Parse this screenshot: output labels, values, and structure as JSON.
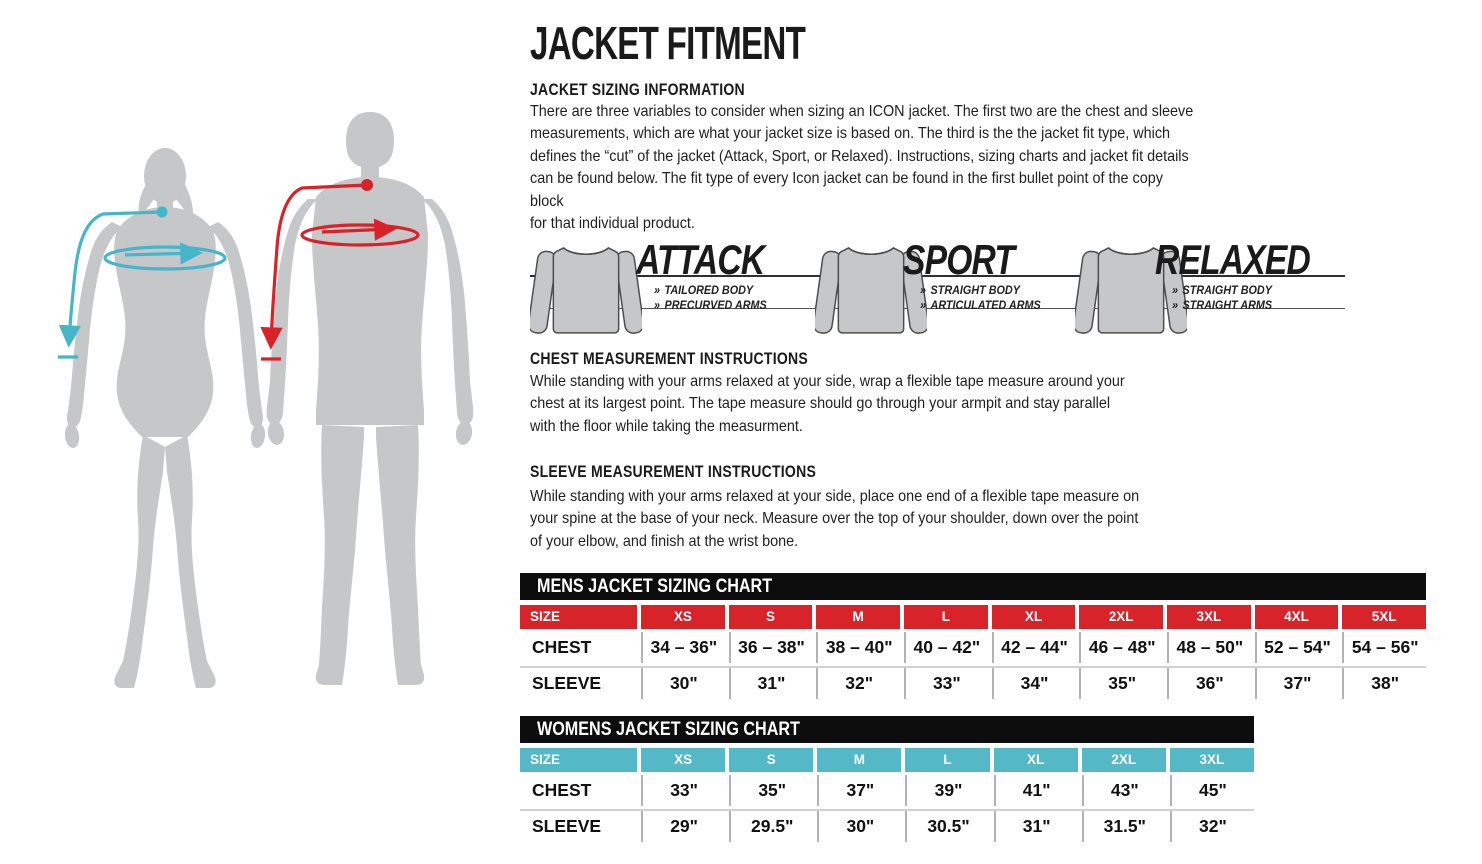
{
  "page": {
    "title": "JACKET FITMENT"
  },
  "colors": {
    "mens_accent": "#d8232a",
    "womens_accent": "#54b8c7",
    "title_bar": "#0d0d0d",
    "silhouette_gray": "#c5c7c9",
    "female_measure": "#45b6c9",
    "male_measure": "#da2128"
  },
  "sizing_info": {
    "heading": "JACKET SIZING INFORMATION",
    "body_lines": [
      "There are three variables to consider when sizing an ICON jacket. The first two are the chest and sleeve",
      "measurements, which are what your jacket size is based on. The third is the the jacket fit type, which",
      "defines the “cut” of the jacket (Attack, Sport, or Relaxed). Instructions, sizing charts and jacket fit details",
      "can be found below. The fit type of every Icon jacket can be found in the first bullet point of the copy block",
      "for that individual product."
    ]
  },
  "fit_types": {
    "bullet_marker": "»",
    "items": [
      {
        "name": "ATTACK",
        "bullets": [
          "TAILORED BODY",
          "PRECURVED ARMS"
        ]
      },
      {
        "name": "SPORT",
        "bullets": [
          "STRAIGHT BODY",
          "ARTICULATED ARMS"
        ]
      },
      {
        "name": "RELAXED",
        "bullets": [
          "STRAIGHT BODY",
          "STRAIGHT ARMS"
        ]
      }
    ]
  },
  "chest_instructions": {
    "heading": "CHEST MEASUREMENT INSTRUCTIONS",
    "body_lines": [
      "While standing with your arms relaxed at your side, wrap a flexible tape measure around your",
      "chest at its largest point. The tape measure should go through your armpit and stay parallel",
      "with the floor while taking the measurment."
    ]
  },
  "sleeve_instructions": {
    "heading": "SLEEVE MEASUREMENT INSTRUCTIONS",
    "body_lines": [
      "While standing with your arms relaxed at your side, place one end of a flexible tape measure on",
      "your spine at the base of your neck. Measure over the top of your shoulder, down over the point",
      "of your elbow, and finish at the wrist bone."
    ]
  },
  "mens_chart": {
    "title": "MENS JACKET SIZING CHART",
    "accent_color": "#d8232a",
    "columns": [
      "SIZE",
      "XS",
      "S",
      "M",
      "L",
      "XL",
      "2XL",
      "3XL",
      "4XL",
      "5XL"
    ],
    "rows": [
      {
        "label": "CHEST",
        "values": [
          "34 – 36\"",
          "36 – 38\"",
          "38 – 40\"",
          "40 – 42\"",
          "42 – 44\"",
          "46 – 48\"",
          "48 – 50\"",
          "52 – 54\"",
          "54 – 56\""
        ]
      },
      {
        "label": "SLEEVE",
        "values": [
          "30\"",
          "31\"",
          "32\"",
          "33\"",
          "34\"",
          "35\"",
          "36\"",
          "37\"",
          "38\""
        ]
      }
    ]
  },
  "womens_chart": {
    "title": "WOMENS JACKET SIZING CHART",
    "accent_color": "#54b8c7",
    "columns": [
      "SIZE",
      "XS",
      "S",
      "M",
      "L",
      "XL",
      "2XL",
      "3XL"
    ],
    "rows": [
      {
        "label": "CHEST",
        "values": [
          "33\"",
          "35\"",
          "37\"",
          "39\"",
          "41\"",
          "43\"",
          "45\""
        ]
      },
      {
        "label": "SLEEVE",
        "values": [
          "29\"",
          "29.5\"",
          "30\"",
          "30.5\"",
          "31\"",
          "31.5\"",
          "32\""
        ]
      }
    ]
  }
}
